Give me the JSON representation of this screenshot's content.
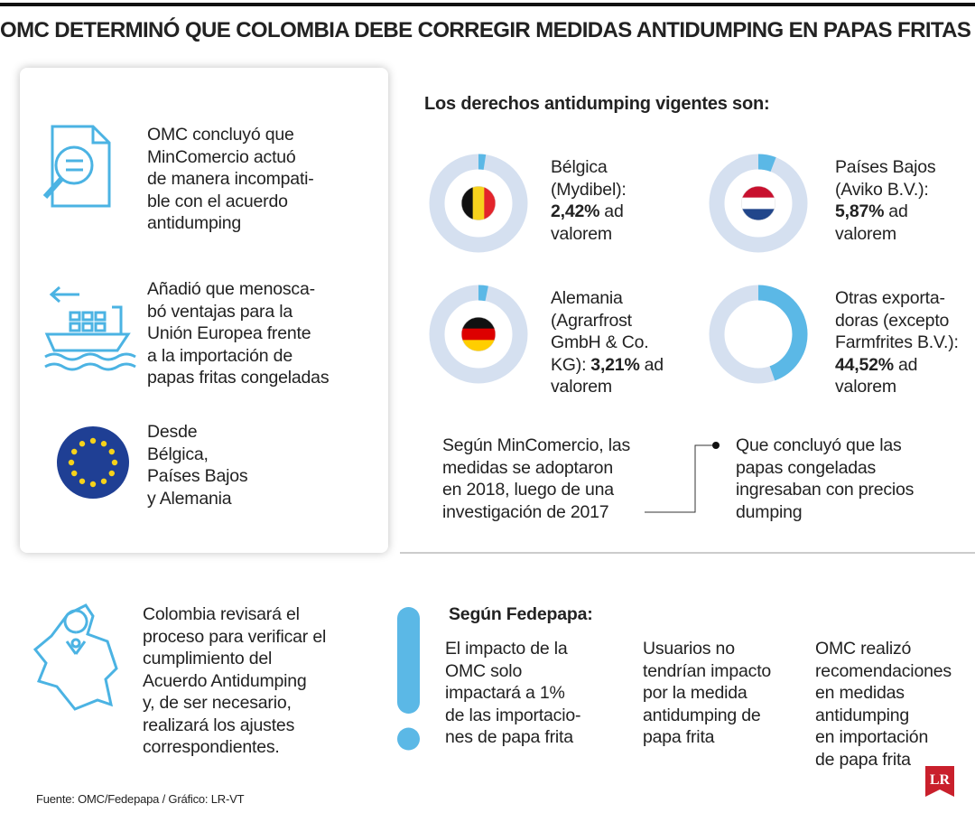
{
  "title": "OMC DETERMINÓ QUE COLOMBIA DEBE CORREGIR MEDIDAS ANTIDUMPING EN PAPAS FRITAS",
  "panel": {
    "items": [
      [
        "OMC concluyó que",
        "MinComercio actuó",
        "de manera incompati-",
        "ble con el acuerdo",
        "antidumping"
      ],
      [
        "Añadió que menosca-",
        "bó ventajas para la",
        "Unión Europea frente",
        "a la importación de",
        "papas fritas congeladas"
      ],
      [
        "Desde",
        "Bélgica,",
        "Países Bajos",
        "y Alemania"
      ]
    ]
  },
  "duties": {
    "heading": "Los derechos antidumping vigentes son:",
    "items": [
      {
        "lines": [
          "Bélgica",
          "(Mydibel):"
        ],
        "value": 2.42,
        "value_label": "2,42%",
        "value_suffix": "ad",
        "last_line": "valorem"
      },
      {
        "lines": [
          "Países Bajos",
          "(Aviko B.V.):"
        ],
        "value": 5.87,
        "value_label": "5,87%",
        "value_suffix": "ad",
        "last_line": "valorem"
      },
      {
        "lines": [
          "Alemania",
          "(Agrarfrost",
          "GmbH & Co."
        ],
        "value_prefix": "KG):",
        "value": 3.21,
        "value_label": "3,21%",
        "value_suffix": "ad",
        "last_line": "valorem"
      },
      {
        "lines": [
          "Otras exporta-",
          "doras (excepto",
          "Farmfrites B.V.):"
        ],
        "value": 44.52,
        "value_label": "44,52%",
        "value_suffix": "ad",
        "last_line": "valorem"
      }
    ]
  },
  "note": {
    "left": [
      "Según MinComercio, las",
      "medidas se adoptaron",
      "en 2018, luego de una",
      "investigación de 2017"
    ],
    "right": [
      "Que concluyó que las",
      "papas congeladas",
      "ingresaban con precios",
      "dumping"
    ]
  },
  "review": [
    "Colombia revisará el",
    "proceso para verificar el",
    "cumplimiento del",
    "Acuerdo Antidumping",
    "y, de ser necesario,",
    "realizará los ajustes",
    "correspondientes."
  ],
  "fedepapa": {
    "heading": "Según Fedepapa:",
    "columns": [
      [
        "El impacto de la",
        "OMC solo",
        "impactará a 1%",
        "de las importacio-",
        "nes de papa frita"
      ],
      [
        "Usuarios no",
        "tendrían impacto",
        "por la medida",
        "antidumping de",
        "papa frita"
      ],
      [
        "OMC realizó",
        "recomendaciones",
        "en medidas",
        "antidumping",
        "en importación",
        "de papa frita"
      ]
    ]
  },
  "source": "Fuente: OMC/Fedepapa / Gráfico: LR-VT",
  "logo": "LR"
}
